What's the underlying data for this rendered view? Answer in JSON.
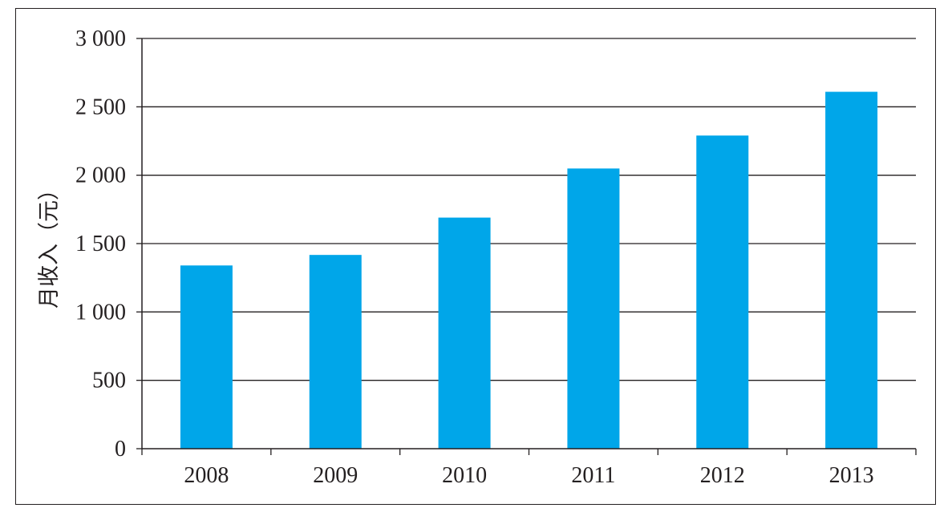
{
  "chart_data": {
    "type": "bar",
    "categories": [
      "2008",
      "2009",
      "2010",
      "2011",
      "2012",
      "2013"
    ],
    "values": [
      1340,
      1417,
      1690,
      2049,
      2290,
      2610
    ],
    "ylabel": "月收入（元）",
    "xlabel": "",
    "title": "",
    "ylim": [
      0,
      3000
    ],
    "yticks": [
      0,
      500,
      1000,
      1500,
      2000,
      2500,
      3000
    ],
    "ytick_labels": [
      "0",
      "500",
      "1 000",
      "1 500",
      "2 000",
      "2 500",
      "3 000"
    ],
    "grid": "horizontal",
    "legend": "none",
    "bar_color": "#00a6e9",
    "grid_color": "#231f20"
  }
}
